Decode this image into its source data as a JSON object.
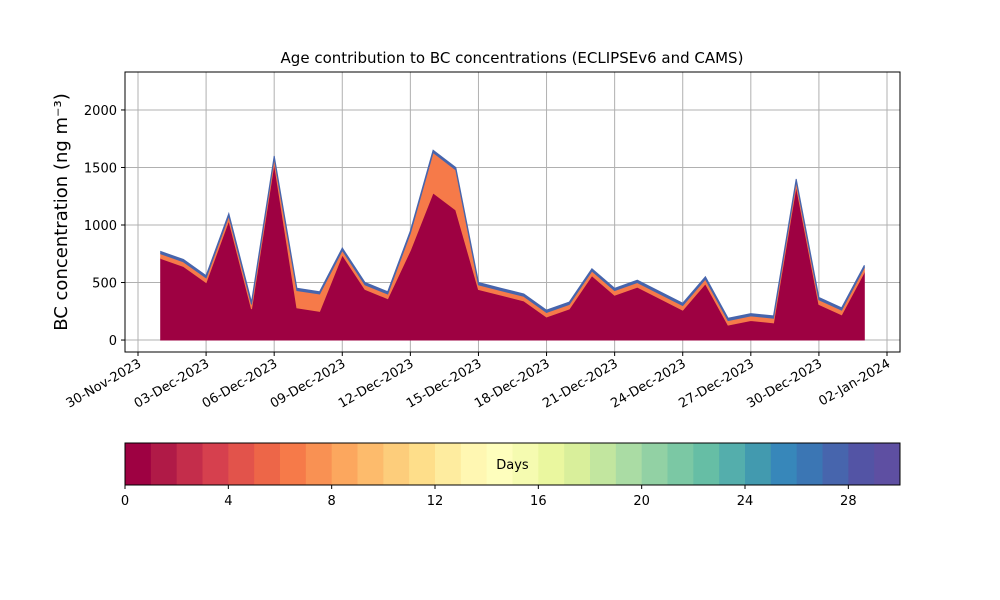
{
  "chart_data": {
    "type": "stacked_area",
    "title": "Age contribution to BC concentrations (ECLIPSEv6 and CAMS)",
    "y_label": "BC concentration (ng m⁻³)",
    "x": [
      "01-Dec-2023",
      "02-Dec-2023",
      "03-Dec-2023",
      "04-Dec-2023",
      "05-Dec-2023",
      "06-Dec-2023",
      "07-Dec-2023",
      "08-Dec-2023",
      "09-Dec-2023",
      "10-Dec-2023",
      "11-Dec-2023",
      "12-Dec-2023",
      "13-Dec-2023",
      "14-Dec-2023",
      "15-Dec-2023",
      "16-Dec-2023",
      "17-Dec-2023",
      "18-Dec-2023",
      "19-Dec-2023",
      "20-Dec-2023",
      "21-Dec-2023",
      "22-Dec-2023",
      "23-Dec-2023",
      "24-Dec-2023",
      "25-Dec-2023",
      "26-Dec-2023",
      "27-Dec-2023",
      "28-Dec-2023",
      "29-Dec-2023",
      "30-Dec-2023",
      "31-Dec-2023",
      "01-Jan-2024"
    ],
    "series": [
      {
        "color": "#9e0142",
        "values": [
          710,
          640,
          500,
          1040,
          270,
          1540,
          280,
          250,
          740,
          440,
          360,
          780,
          1280,
          1130,
          440,
          390,
          340,
          200,
          270,
          560,
          390,
          460,
          360,
          260,
          490,
          130,
          170,
          150,
          1340,
          310,
          220,
          590
        ]
      },
      {
        "color": "#f67a49",
        "values": [
          40,
          40,
          40,
          40,
          40,
          40,
          150,
          150,
          40,
          40,
          40,
          150,
          350,
          350,
          40,
          40,
          40,
          40,
          40,
          40,
          40,
          40,
          40,
          40,
          40,
          40,
          40,
          40,
          40,
          40,
          40,
          40
        ]
      },
      {
        "color": "#4765ad",
        "values": [
          20,
          20,
          20,
          20,
          20,
          20,
          20,
          20,
          20,
          20,
          20,
          20,
          20,
          20,
          20,
          20,
          20,
          20,
          20,
          20,
          20,
          20,
          20,
          20,
          20,
          20,
          20,
          20,
          20,
          20,
          20,
          20
        ]
      }
    ],
    "xlim": [
      "30-Nov-2023",
      "02-Jan-2024"
    ],
    "xticks": [
      "30-Nov-2023",
      "03-Dec-2023",
      "06-Dec-2023",
      "09-Dec-2023",
      "12-Dec-2023",
      "15-Dec-2023",
      "18-Dec-2023",
      "21-Dec-2023",
      "24-Dec-2023",
      "27-Dec-2023",
      "30-Dec-2023",
      "02-Jan-2024"
    ],
    "ylim": [
      -104,
      2330
    ],
    "yticks": [
      0,
      500,
      1000,
      1500,
      2000
    ],
    "grid": true,
    "colorbar": {
      "label": "Days",
      "lim": [
        0,
        30
      ],
      "ticks": [
        0,
        4,
        8,
        12,
        16,
        20,
        24,
        28
      ],
      "colors": [
        "#9e0142",
        "#b01a47",
        "#c42d4b",
        "#d6404e",
        "#e2534b",
        "#ed6648",
        "#f67a49",
        "#f99153",
        "#fca75e",
        "#fdbb6c",
        "#fdcd7b",
        "#fede8a",
        "#feec9f",
        "#fff7b2",
        "#fefebd",
        "#f5fbb0",
        "#eaf79f",
        "#d9ef9b",
        "#c2e69f",
        "#aadca4",
        "#92d1a4",
        "#7bc8a4",
        "#66bea5",
        "#54aeac",
        "#429aaf",
        "#3787ba",
        "#3b76b4",
        "#4765ad",
        "#5354a5",
        "#5e4fa2"
      ]
    }
  }
}
